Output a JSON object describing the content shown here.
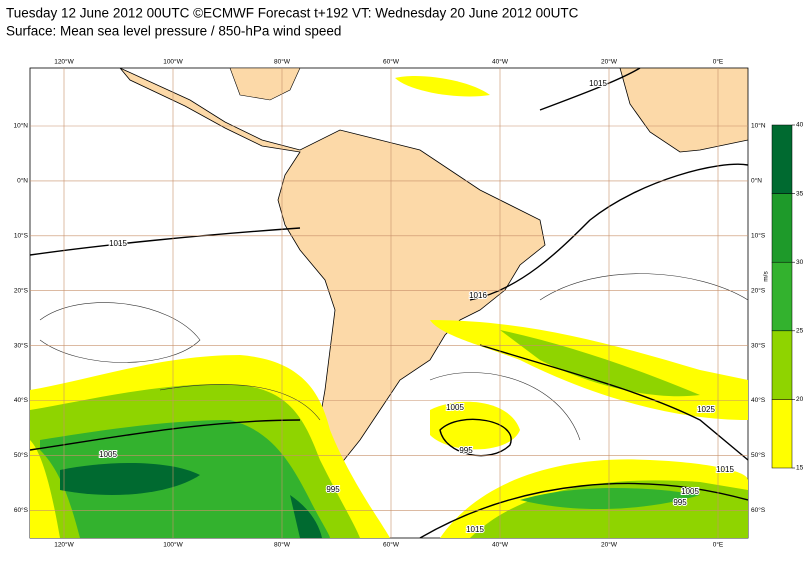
{
  "header": {
    "line1": "Tuesday 12 June 2012 00UTC ©ECMWF Forecast t+192 VT: Wednesday 20 June 2012 00UTC",
    "line2": "Surface: Mean sea level pressure / 850-hPa wind speed"
  },
  "map": {
    "longitudes": [
      "120°W",
      "100°W",
      "80°W",
      "60°W",
      "40°W",
      "20°W",
      "0°E"
    ],
    "latitudes": [
      "10°N",
      "0°N",
      "10°S",
      "20°S",
      "30°S",
      "40°S",
      "50°S",
      "60°S"
    ],
    "isobar_labels": [
      "1015",
      "1015",
      "1016",
      "1005",
      "1005",
      "995",
      "995",
      "1025",
      "1015",
      "1005",
      "995",
      "1015"
    ]
  },
  "colorbar": {
    "levels": [
      15,
      20,
      25,
      30,
      35,
      40
    ],
    "colors": [
      "#ffff00",
      "#8fd400",
      "#33b22e",
      "#1e9a2a",
      "#006a30"
    ],
    "unit": "m/s"
  }
}
